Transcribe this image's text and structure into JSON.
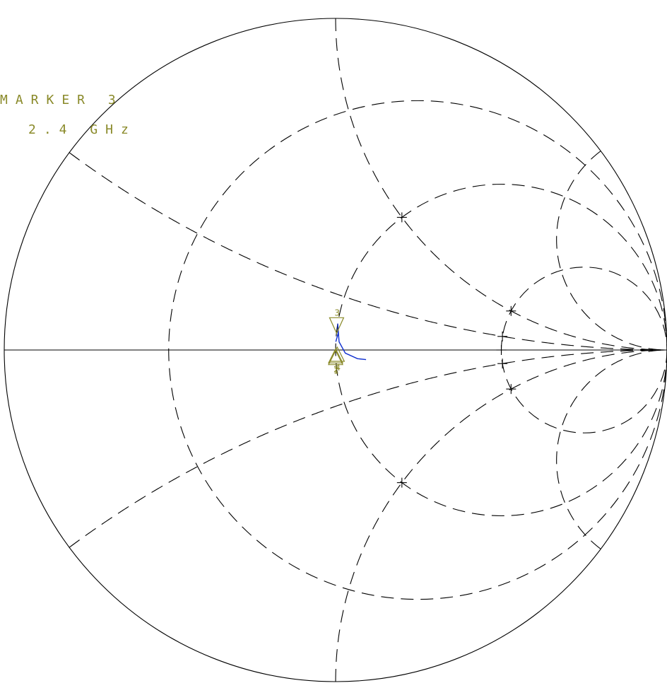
{
  "marker_readout": {
    "label": "MARKER 3",
    "frequency": "2.4 GHz"
  },
  "colors": {
    "marker": "#8a8a2a",
    "trace": "#1030d0",
    "grid": "#000000"
  },
  "chart_data": {
    "type": "smith",
    "grid": true,
    "resistance_circles": [
      0.33,
      1,
      3
    ],
    "reactance_arcs": [
      0.33,
      1,
      3,
      -0.33,
      -1,
      -3
    ],
    "trace_points": [
      {
        "r": 1.0,
        "x": 0.05
      },
      {
        "r": 1.01,
        "x": 0.1
      },
      {
        "r": 1.0,
        "x": 0.16
      },
      {
        "r": 1.02,
        "x": 0.05
      },
      {
        "r": 1.06,
        "x": -0.02
      },
      {
        "r": 1.14,
        "x": -0.06
      },
      {
        "r": 1.2,
        "x": -0.07
      }
    ],
    "markers": [
      {
        "id": "1",
        "r": 1.0,
        "x": -0.02
      },
      {
        "id": "2",
        "r": 1.0,
        "x": -0.01
      },
      {
        "id": "3",
        "r": 1.0,
        "x": 0.11
      },
      {
        "id": "4",
        "r": 1.01,
        "x": 0.0
      }
    ]
  }
}
